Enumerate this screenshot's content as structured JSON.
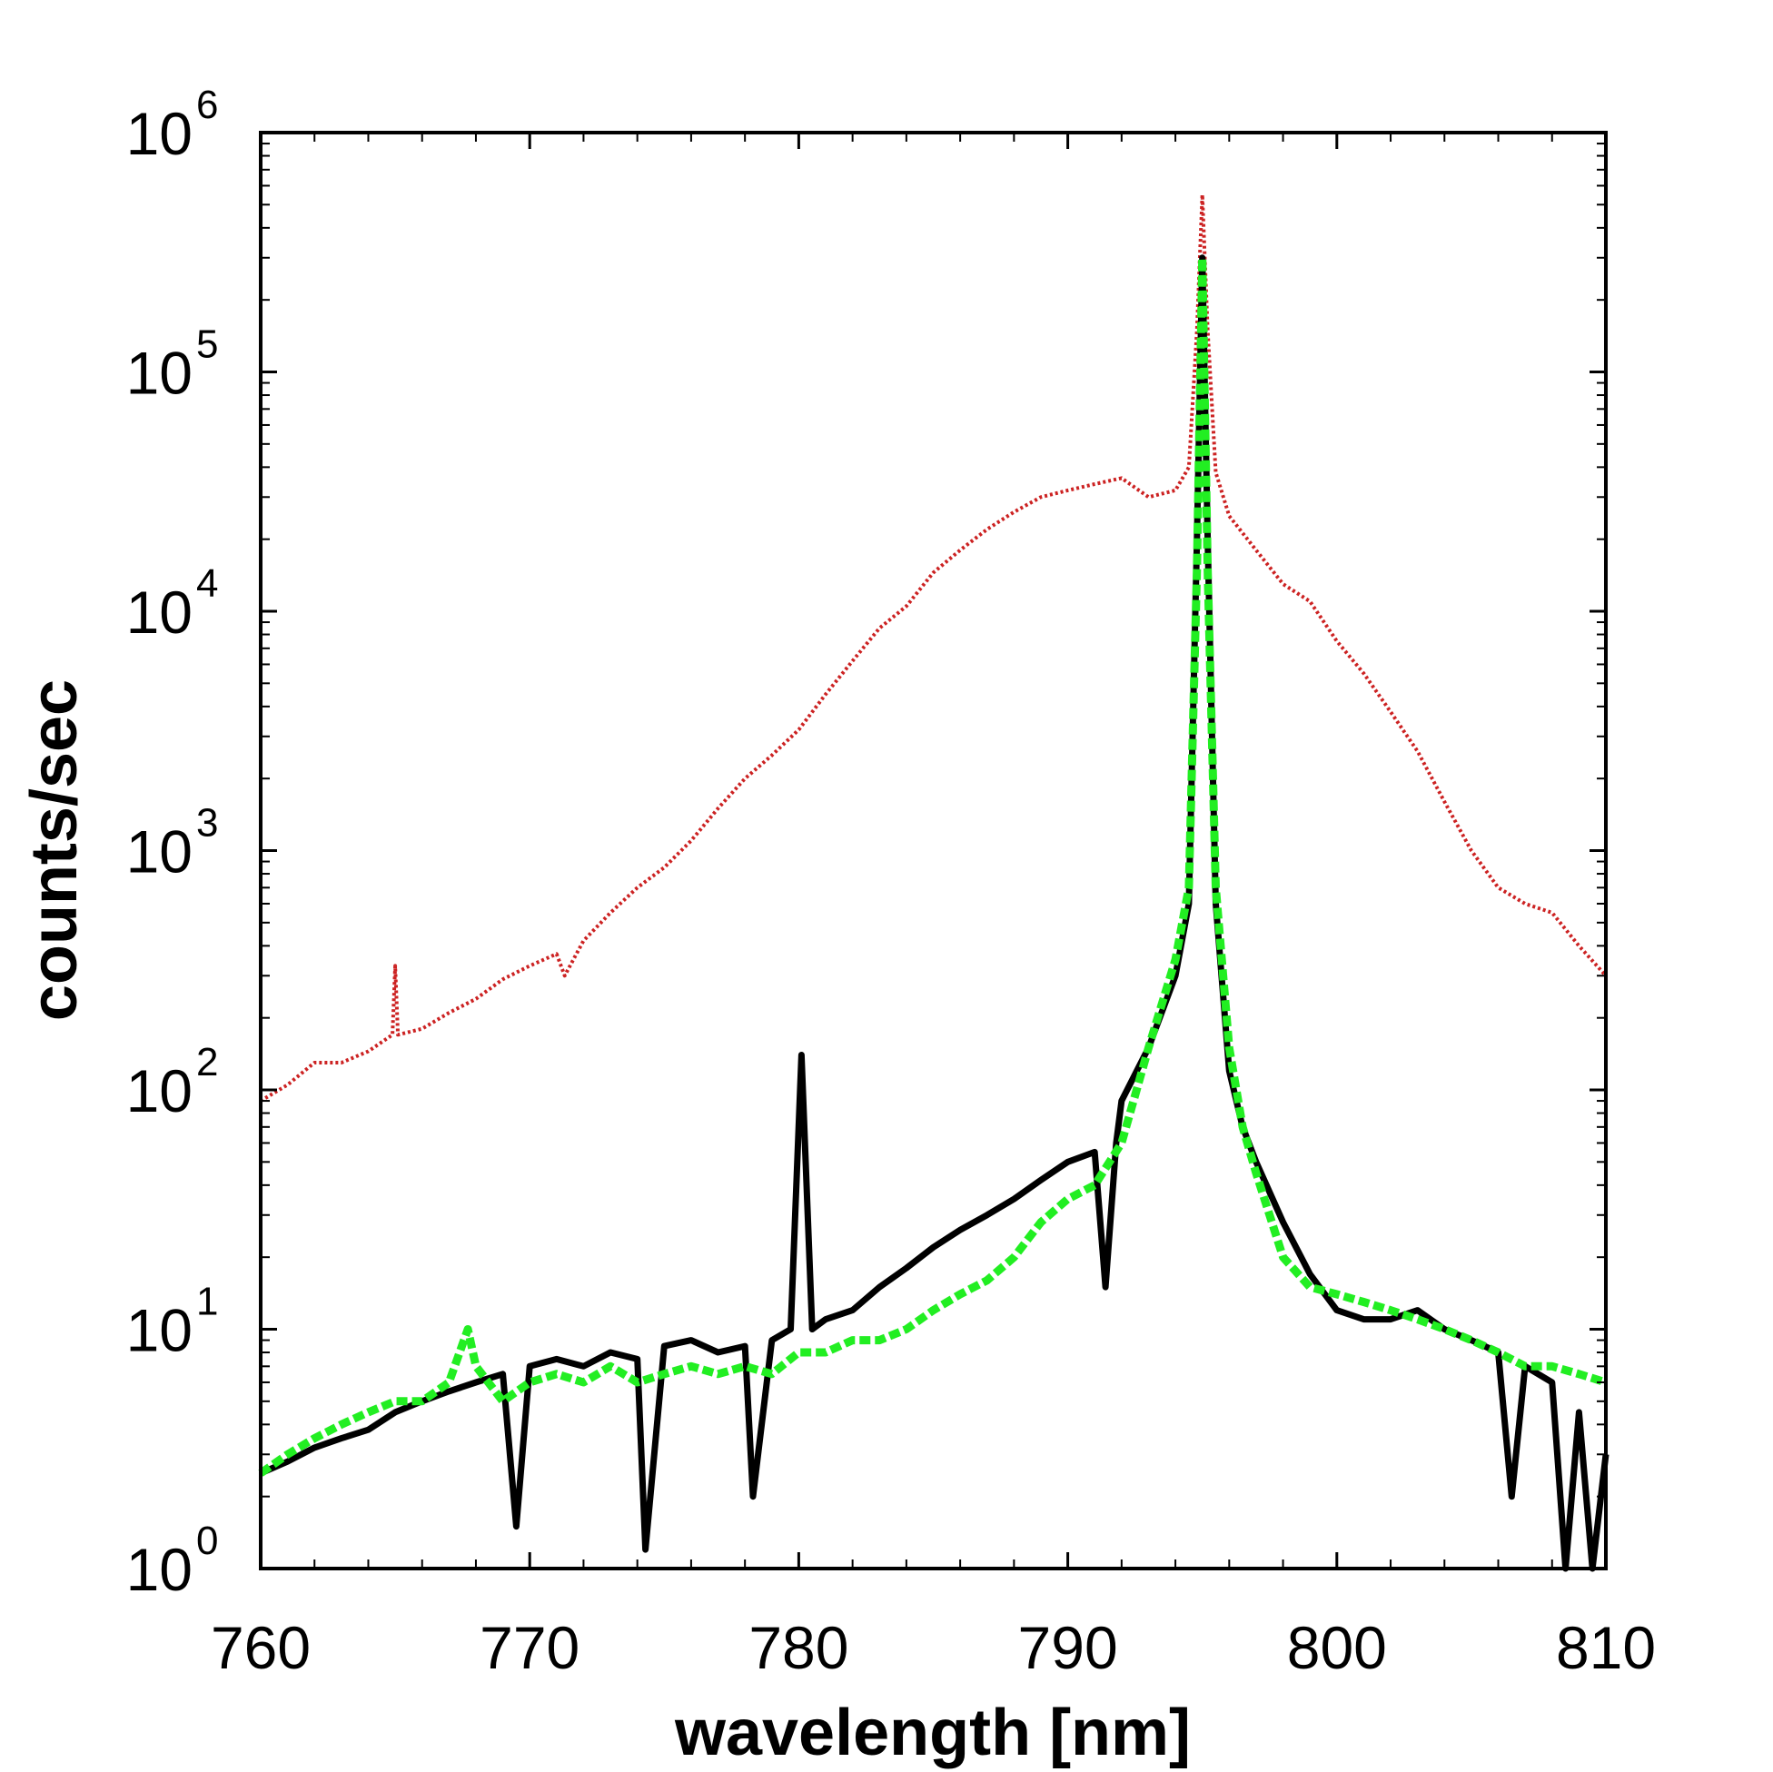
{
  "chart_data": {
    "type": "line",
    "title": "",
    "xlabel": "wavelength [nm]",
    "ylabel": "counts/sec",
    "xlim": [
      760,
      810
    ],
    "ylim": [
      1,
      1000000
    ],
    "yscale": "log",
    "x_ticks": [
      760,
      770,
      780,
      790,
      800,
      810
    ],
    "x_tick_labels": [
      "760",
      "770",
      "780",
      "790",
      "800",
      "810"
    ],
    "y_ticks": [
      1,
      10,
      100,
      1000,
      10000,
      100000,
      1000000
    ],
    "y_tick_labels": [
      {
        "base": "10",
        "exp": "0"
      },
      {
        "base": "10",
        "exp": "1"
      },
      {
        "base": "10",
        "exp": "2"
      },
      {
        "base": "10",
        "exp": "3"
      },
      {
        "base": "10",
        "exp": "4"
      },
      {
        "base": "10",
        "exp": "5"
      },
      {
        "base": "10",
        "exp": "6"
      }
    ],
    "grid": false,
    "legend": "none",
    "series": [
      {
        "name": "red",
        "color": "#cc2222",
        "style": "dotted",
        "x": [
          760,
          761,
          762,
          763,
          764,
          764.9,
          765,
          765.1,
          766,
          767,
          768,
          769,
          770,
          771,
          771.3,
          772,
          773,
          774,
          775,
          776,
          777,
          778,
          779,
          780,
          781,
          782,
          783,
          784,
          785,
          786,
          787,
          788,
          789,
          790,
          791,
          792,
          793,
          794,
          794.5,
          794.8,
          795,
          795.2,
          795.5,
          796,
          797,
          798,
          799,
          800,
          801,
          802,
          803,
          804,
          805,
          806,
          807,
          808,
          809,
          810
        ],
        "y": [
          90,
          105,
          130,
          130,
          145,
          170,
          330,
          170,
          180,
          210,
          240,
          290,
          330,
          370,
          300,
          420,
          550,
          700,
          850,
          1100,
          1500,
          2000,
          2500,
          3200,
          4500,
          6200,
          8500,
          10500,
          14500,
          18000,
          22000,
          26000,
          30000,
          32000,
          34000,
          36000,
          30000,
          32000,
          40000,
          150000,
          550000,
          150000,
          38000,
          25000,
          18000,
          13000,
          11000,
          7500,
          5500,
          3800,
          2600,
          1600,
          1000,
          700,
          600,
          550,
          400,
          300
        ]
      },
      {
        "name": "black",
        "color": "#000000",
        "style": "solid",
        "x": [
          760,
          761,
          762,
          763,
          764,
          765,
          766,
          767,
          768,
          769,
          769.5,
          770,
          771,
          772,
          773,
          774,
          774.3,
          775,
          776,
          777,
          778,
          778.3,
          779,
          779.7,
          780.1,
          780.5,
          781,
          782,
          783,
          784,
          785,
          786,
          787,
          788,
          789,
          790,
          791,
          791.4,
          791.8,
          792,
          793,
          794,
          794.5,
          794.8,
          795,
          795.2,
          795.5,
          796,
          796.5,
          797,
          798,
          799,
          800,
          801,
          802,
          803,
          804,
          805,
          806,
          806.5,
          807,
          808,
          808.5,
          809,
          809.5,
          810
        ],
        "y": [
          2.5,
          2.8,
          3.2,
          3.5,
          3.8,
          4.5,
          5.0,
          5.5,
          6.0,
          6.5,
          1.5,
          7.0,
          7.5,
          7.0,
          8.0,
          7.5,
          1.2,
          8.5,
          9.0,
          8.0,
          8.5,
          2.0,
          9.0,
          10,
          140,
          10,
          11,
          12,
          15,
          18,
          22,
          26,
          30,
          35,
          42,
          50,
          55,
          15,
          60,
          90,
          150,
          300,
          600,
          20000,
          300000,
          20000,
          600,
          120,
          70,
          50,
          28,
          17,
          12,
          11,
          11,
          12,
          10,
          9,
          8,
          2.0,
          7,
          6,
          1.0,
          4.5,
          1.0,
          3.0
        ]
      },
      {
        "name": "green",
        "color": "#22ee22",
        "style": "dotted",
        "x": [
          760,
          761,
          762,
          763,
          764,
          765,
          766,
          767,
          767.7,
          768,
          769,
          770,
          771,
          772,
          773,
          774,
          775,
          776,
          777,
          778,
          779,
          780,
          781,
          782,
          783,
          784,
          785,
          786,
          787,
          788,
          789,
          790,
          791,
          792,
          793,
          794,
          794.5,
          794.8,
          795,
          795.2,
          795.5,
          796,
          796.5,
          797,
          798,
          799,
          800,
          801,
          802,
          803,
          804,
          805,
          806,
          807,
          808,
          809,
          810
        ],
        "y": [
          2.5,
          3.0,
          3.5,
          4.0,
          4.5,
          5.0,
          5.0,
          6.0,
          10,
          7.0,
          5.0,
          6.0,
          6.5,
          6.0,
          7.0,
          6.0,
          6.5,
          7.0,
          6.5,
          7.0,
          6.5,
          8.0,
          8.0,
          9.0,
          9.0,
          10,
          12,
          14,
          16,
          20,
          28,
          35,
          40,
          60,
          150,
          350,
          700,
          15000,
          300000,
          15000,
          700,
          150,
          70,
          45,
          20,
          15,
          14,
          13,
          12,
          11,
          10,
          9,
          8,
          7,
          7,
          6.5,
          6.0
        ]
      }
    ]
  }
}
